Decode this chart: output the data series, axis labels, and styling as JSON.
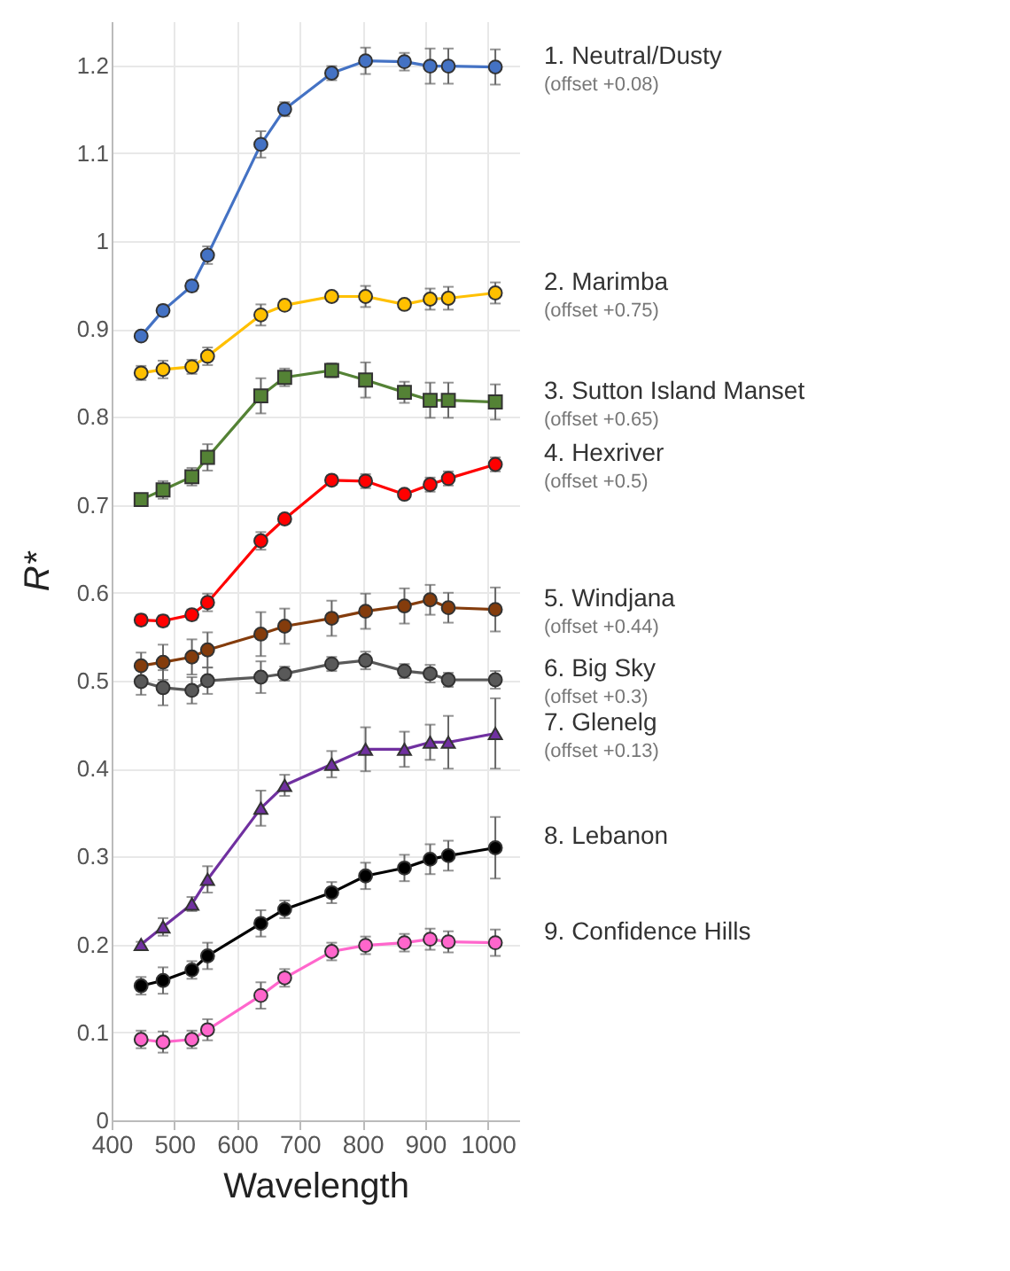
{
  "chart_data": {
    "type": "line",
    "xlabel": "Wavelength",
    "ylabel": "R*",
    "x": [
      447,
      482,
      528,
      553,
      638,
      676,
      751,
      805,
      867,
      908,
      937,
      1012
    ],
    "xlim": [
      400,
      1050
    ],
    "ylim": [
      0,
      1.25
    ],
    "xticks": [
      400,
      500,
      600,
      700,
      800,
      900,
      1000
    ],
    "yticks": [
      0,
      0.1,
      0.2,
      0.3,
      0.4,
      0.5,
      0.6,
      0.7,
      0.8,
      0.9,
      1,
      1.1,
      1.2
    ],
    "grid": true,
    "legend": false,
    "marker": "circle",
    "line_style": "solid",
    "series": [
      {
        "name": "1. Neutral/Dusty",
        "color": "#4472c4",
        "values": [
          0.892,
          0.921,
          0.949,
          0.984,
          1.11,
          1.15,
          1.191,
          1.205,
          1.204,
          1.199,
          1.199,
          1.198
        ],
        "errors": [
          0.005,
          0.006,
          0.006,
          0.01,
          0.015,
          0.008,
          0.008,
          0.015,
          0.01,
          0.02,
          0.02,
          0.02
        ]
      },
      {
        "name": "2. Marimba",
        "color": "#ffc000",
        "values": [
          0.85,
          0.854,
          0.857,
          0.869,
          0.916,
          0.927,
          0.937,
          0.937,
          0.928,
          0.934,
          0.935,
          0.941
        ],
        "errors": [
          0.008,
          0.01,
          0.008,
          0.01,
          0.012,
          0.005,
          0.005,
          0.012,
          0.005,
          0.012,
          0.013,
          0.012
        ]
      },
      {
        "name": "3. Sutton Island Manset",
        "color": "#548235",
        "marker": "square",
        "values": [
          0.706,
          0.717,
          0.732,
          0.754,
          0.824,
          0.845,
          0.853,
          0.842,
          0.828,
          0.819,
          0.819,
          0.817
        ],
        "errors": [
          0.005,
          0.01,
          0.01,
          0.015,
          0.02,
          0.01,
          0.008,
          0.02,
          0.012,
          0.02,
          0.02,
          0.02
        ]
      },
      {
        "name": "4. Hexriver",
        "color": "#ff0000",
        "values": [
          0.569,
          0.568,
          0.575,
          0.589,
          0.659,
          0.684,
          0.728,
          0.727,
          0.712,
          0.723,
          0.73,
          0.746
        ],
        "errors": [
          0.006,
          0.006,
          0.006,
          0.01,
          0.01,
          0.005,
          0.005,
          0.008,
          0.005,
          0.008,
          0.008,
          0.008
        ]
      },
      {
        "name": "5. Windjana",
        "color": "#843c0c",
        "values": [
          0.517,
          0.521,
          0.527,
          0.535,
          0.553,
          0.562,
          0.571,
          0.579,
          0.585,
          0.592,
          0.583,
          0.581
        ],
        "errors": [
          0.015,
          0.02,
          0.02,
          0.02,
          0.025,
          0.02,
          0.02,
          0.02,
          0.02,
          0.017,
          0.017,
          0.025
        ]
      },
      {
        "name": "6. Big Sky",
        "color": "#595959",
        "values": [
          0.499,
          0.492,
          0.489,
          0.5,
          0.504,
          0.508,
          0.519,
          0.523,
          0.511,
          0.508,
          0.501,
          0.501
        ],
        "errors": [
          0.015,
          0.02,
          0.015,
          0.015,
          0.018,
          0.008,
          0.008,
          0.01,
          0.008,
          0.01,
          0.008,
          0.01
        ]
      },
      {
        "name": "7. Glenelg",
        "color": "#7030a0",
        "marker": "triangle",
        "values": [
          0.2,
          0.22,
          0.246,
          0.274,
          0.355,
          0.381,
          0.405,
          0.422,
          0.422,
          0.43,
          0.43,
          0.44
        ],
        "errors": [
          0.003,
          0.01,
          0.008,
          0.015,
          0.02,
          0.012,
          0.015,
          0.025,
          0.02,
          0.02,
          0.03,
          0.04
        ]
      },
      {
        "name": "8. Lebanon",
        "color": "#000000",
        "values": [
          0.153,
          0.159,
          0.171,
          0.187,
          0.224,
          0.24,
          0.259,
          0.278,
          0.287,
          0.297,
          0.301,
          0.31
        ],
        "errors": [
          0.01,
          0.015,
          0.01,
          0.015,
          0.015,
          0.01,
          0.012,
          0.015,
          0.015,
          0.017,
          0.017,
          0.035
        ]
      },
      {
        "name": "9. Confidence Hills",
        "color": "#ff66cc",
        "values": [
          0.092,
          0.089,
          0.092,
          0.103,
          0.142,
          0.162,
          0.192,
          0.199,
          0.202,
          0.206,
          0.203,
          0.202
        ],
        "errors": [
          0.01,
          0.012,
          0.01,
          0.012,
          0.015,
          0.01,
          0.01,
          0.01,
          0.01,
          0.012,
          0.012,
          0.015
        ]
      }
    ],
    "annotations": [
      "(offset +0.08)",
      "(offset +0.75)",
      "(offset +0.65)",
      "(offset +0.5)",
      "(offset +0.44)",
      "(offset +0.3)",
      "(offset +0.13)"
    ]
  }
}
